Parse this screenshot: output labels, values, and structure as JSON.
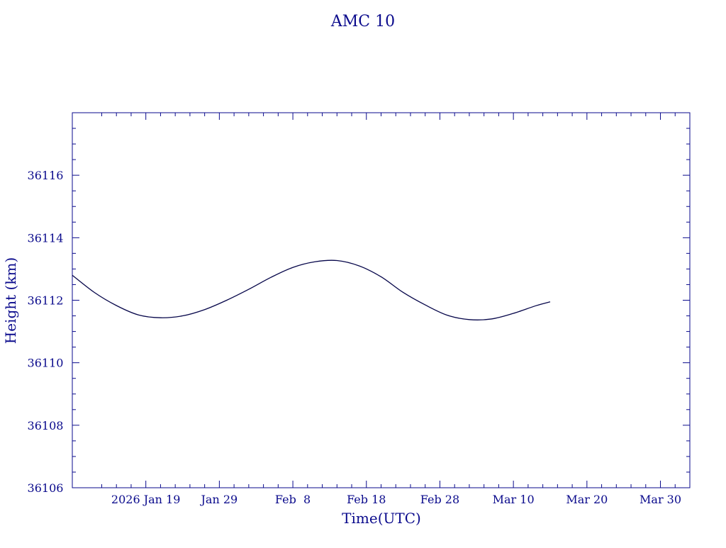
{
  "chart_data": {
    "type": "line",
    "title": "AMC 10",
    "xlabel": "Time(UTC)",
    "ylabel": "Height (km)",
    "x_tick_labels": [
      "2026 Jan 19",
      "Jan 29",
      "Feb  8",
      "Feb 18",
      "Feb 28",
      "Mar 10",
      "Mar 20",
      "Mar 30"
    ],
    "x_tick_dates": [
      "2026-01-19",
      "2026-01-29",
      "2026-02-08",
      "2026-02-18",
      "2026-02-28",
      "2026-03-10",
      "2026-03-20",
      "2026-03-30"
    ],
    "y_tick_labels": [
      "36106",
      "36108",
      "36110",
      "36112",
      "36114",
      "36116"
    ],
    "y_ticks": [
      36106,
      36108,
      36110,
      36112,
      36114,
      36116
    ],
    "xlim": [
      "2026-01-09",
      "2026-04-03"
    ],
    "ylim": [
      36106,
      36118
    ],
    "grid": false,
    "colors": {
      "axes": "#0a0a8c",
      "line": "#06064a"
    },
    "series": [
      {
        "x": [
          "2026-01-09",
          "2026-01-12",
          "2026-01-15",
          "2026-01-18",
          "2026-01-21",
          "2026-01-24",
          "2026-01-27",
          "2026-01-30",
          "2026-02-02",
          "2026-02-05",
          "2026-02-08",
          "2026-02-11",
          "2026-02-14",
          "2026-02-17",
          "2026-02-20",
          "2026-02-23",
          "2026-02-26",
          "2026-03-01",
          "2026-03-04",
          "2026-03-07",
          "2026-03-10",
          "2026-03-13",
          "2026-03-15"
        ],
        "y": [
          36112.8,
          36112.25,
          36111.83,
          36111.53,
          36111.44,
          36111.5,
          36111.7,
          36112.0,
          36112.35,
          36112.73,
          36113.05,
          36113.23,
          36113.27,
          36113.1,
          36112.75,
          36112.25,
          36111.85,
          36111.52,
          36111.38,
          36111.4,
          36111.58,
          36111.82,
          36111.95
        ]
      }
    ]
  }
}
